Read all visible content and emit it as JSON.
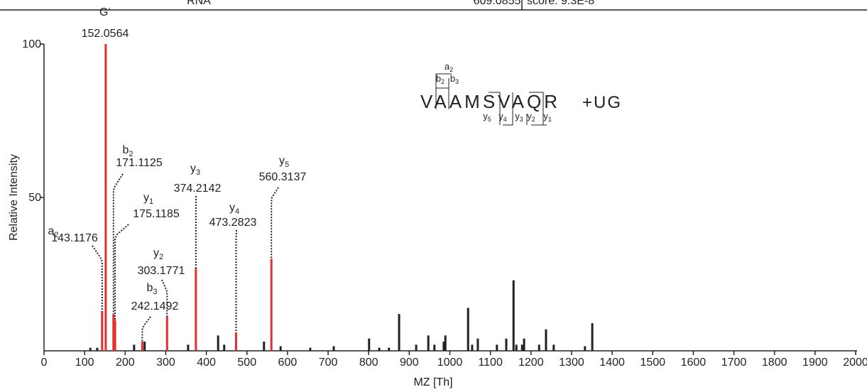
{
  "header": [
    "RNA",
    "609.0855",
    "score: 9.3E-8"
  ],
  "chart_data": {
    "type": "spectrum",
    "xlabel": "MZ [Th]",
    "ylabel": "Relative Intensity",
    "xlim": [
      0,
      2000
    ],
    "ylim": [
      0,
      100
    ],
    "xticks": [
      0,
      100,
      200,
      300,
      400,
      500,
      600,
      700,
      800,
      900,
      1000,
      1100,
      1200,
      1300,
      1400,
      1500,
      1600,
      1700,
      1800,
      1900,
      2000
    ],
    "yticks": [
      50,
      100
    ],
    "annotated": {
      "color": "#e03030",
      "x": [
        143.1176,
        152.0564,
        171.1125,
        175.1185,
        242.1492,
        303.1771,
        374.2142,
        473.2823,
        560.3137
      ],
      "values": [
        13,
        100,
        12,
        10,
        3,
        11,
        27,
        6,
        30
      ],
      "ions": [
        "a",
        "G‘",
        "b",
        "y",
        "b",
        "y",
        "y",
        "y",
        "y"
      ],
      "subscripts": [
        "2",
        null,
        "2",
        "1",
        "3",
        "2",
        "3",
        "4",
        "5"
      ],
      "x_labels": [
        "143.1176",
        "152.0564",
        "171.1125",
        "175.1185",
        "242.1492",
        "303.1771",
        "374.2142",
        "473.2823",
        "560.3137"
      ]
    },
    "unannotated": {
      "color": "#222222",
      "x": [
        114,
        131,
        222,
        248,
        355,
        429,
        444,
        542,
        583,
        656,
        714,
        801,
        826,
        850,
        875,
        917,
        947,
        962,
        985,
        989,
        1045,
        1055,
        1069,
        1116,
        1139,
        1157,
        1164,
        1178,
        1183,
        1220,
        1237,
        1256,
        1333,
        1351
      ],
      "values": [
        1,
        1,
        2,
        3,
        2,
        5,
        2,
        3,
        1.5,
        1,
        1.5,
        4,
        1,
        1,
        12,
        2,
        5,
        2,
        3,
        5,
        14,
        2,
        4,
        2,
        4,
        23,
        2,
        2,
        4,
        2,
        7,
        2,
        1.5,
        9
      ]
    },
    "annotation": {
      "sequence": "VAAMSVAQR",
      "modification": "+UG",
      "fragments": [
        {
          "ion": "a",
          "sub": "2"
        },
        {
          "ion": "b",
          "sub": "2"
        },
        {
          "ion": "b",
          "sub": "3"
        },
        {
          "ion": "y",
          "sub": "5"
        },
        {
          "ion": "y",
          "sub": "4"
        },
        {
          "ion": "y",
          "sub": "3"
        },
        {
          "ion": "y",
          "sub": "2"
        },
        {
          "ion": "y",
          "sub": "1"
        }
      ]
    }
  }
}
